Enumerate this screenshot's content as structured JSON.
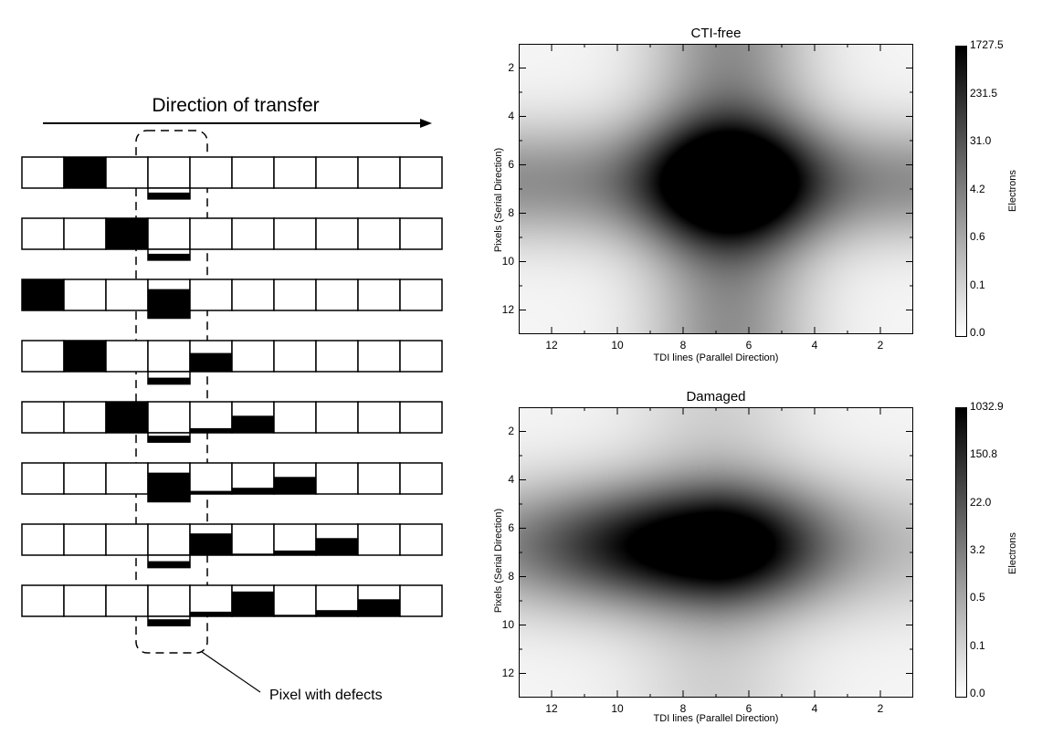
{
  "left_panel": {
    "title": "Direction of transfer",
    "callout": "Pixel with defects",
    "rows": [
      {
        "filled": [
          {
            "cell": 1,
            "fill": 1.0
          }
        ],
        "trail": [],
        "defect_drop": 0.35
      },
      {
        "filled": [
          {
            "cell": 2,
            "fill": 1.0
          }
        ],
        "trail": [],
        "defect_drop": 0.35
      },
      {
        "filled": [
          {
            "cell": 0,
            "fill": 1.0
          }
        ],
        "trail": [],
        "defect_fill": 0.75
      },
      {
        "filled": [
          {
            "cell": 1,
            "fill": 1.0
          }
        ],
        "trail": [
          {
            "cell": 4,
            "fill": 0.6
          }
        ],
        "defect_drop": 0.4
      },
      {
        "filled": [
          {
            "cell": 2,
            "fill": 1.0
          }
        ],
        "trail": [
          {
            "cell": 4,
            "fill": 0.15
          },
          {
            "cell": 5,
            "fill": 0.55
          }
        ],
        "defect_drop": 0.3
      },
      {
        "filled": [],
        "trail": [
          {
            "cell": 4,
            "fill": 0.1
          },
          {
            "cell": 5,
            "fill": 0.2
          },
          {
            "cell": 6,
            "fill": 0.55
          }
        ],
        "defect_fill": 0.75
      },
      {
        "filled": [],
        "trail": [
          {
            "cell": 4,
            "fill": 0.7
          },
          {
            "cell": 5,
            "fill": 0.05
          },
          {
            "cell": 6,
            "fill": 0.15
          },
          {
            "cell": 7,
            "fill": 0.55
          }
        ],
        "defect_drop": 0.4
      },
      {
        "filled": [],
        "trail": [
          {
            "cell": 4,
            "fill": 0.15
          },
          {
            "cell": 5,
            "fill": 0.8
          },
          {
            "cell": 6,
            "fill": 0.05
          },
          {
            "cell": 7,
            "fill": 0.2
          },
          {
            "cell": 8,
            "fill": 0.55
          }
        ],
        "defect_drop": 0.3
      }
    ]
  },
  "plots": [
    {
      "title": "CTI-free",
      "xlabel": "TDI lines (Parallel Direction)",
      "ylabel": "Pixels (Serial Direction)",
      "xticks": [
        "12",
        "10",
        "8",
        "6",
        "4",
        "2"
      ],
      "yticks": [
        "2",
        "4",
        "6",
        "8",
        "10",
        "12"
      ],
      "cbar_label": "Electrons",
      "cbar_ticks": [
        "1727.5",
        "231.5",
        "31.0",
        "4.2",
        "0.6",
        "0.1",
        "0.0"
      ],
      "xlim": [
        13,
        1
      ],
      "ylim": [
        13,
        1
      ],
      "peak_x": 6.6,
      "peak_y": 6.7,
      "damaged": false
    },
    {
      "title": "Damaged",
      "xlabel": "TDI lines (Parallel Direction)",
      "ylabel": "Pixels (Serial Direction)",
      "xticks": [
        "12",
        "10",
        "8",
        "6",
        "4",
        "2"
      ],
      "yticks": [
        "2",
        "4",
        "6",
        "8",
        "10",
        "12"
      ],
      "cbar_label": "Electrons",
      "cbar_ticks": [
        "1032.9",
        "150.8",
        "22.0",
        "3.2",
        "0.5",
        "0.1",
        "0.0"
      ],
      "xlim": [
        13,
        1
      ],
      "ylim": [
        13,
        1
      ],
      "peak_x": 7.0,
      "peak_y": 6.7,
      "damaged": true
    }
  ]
}
